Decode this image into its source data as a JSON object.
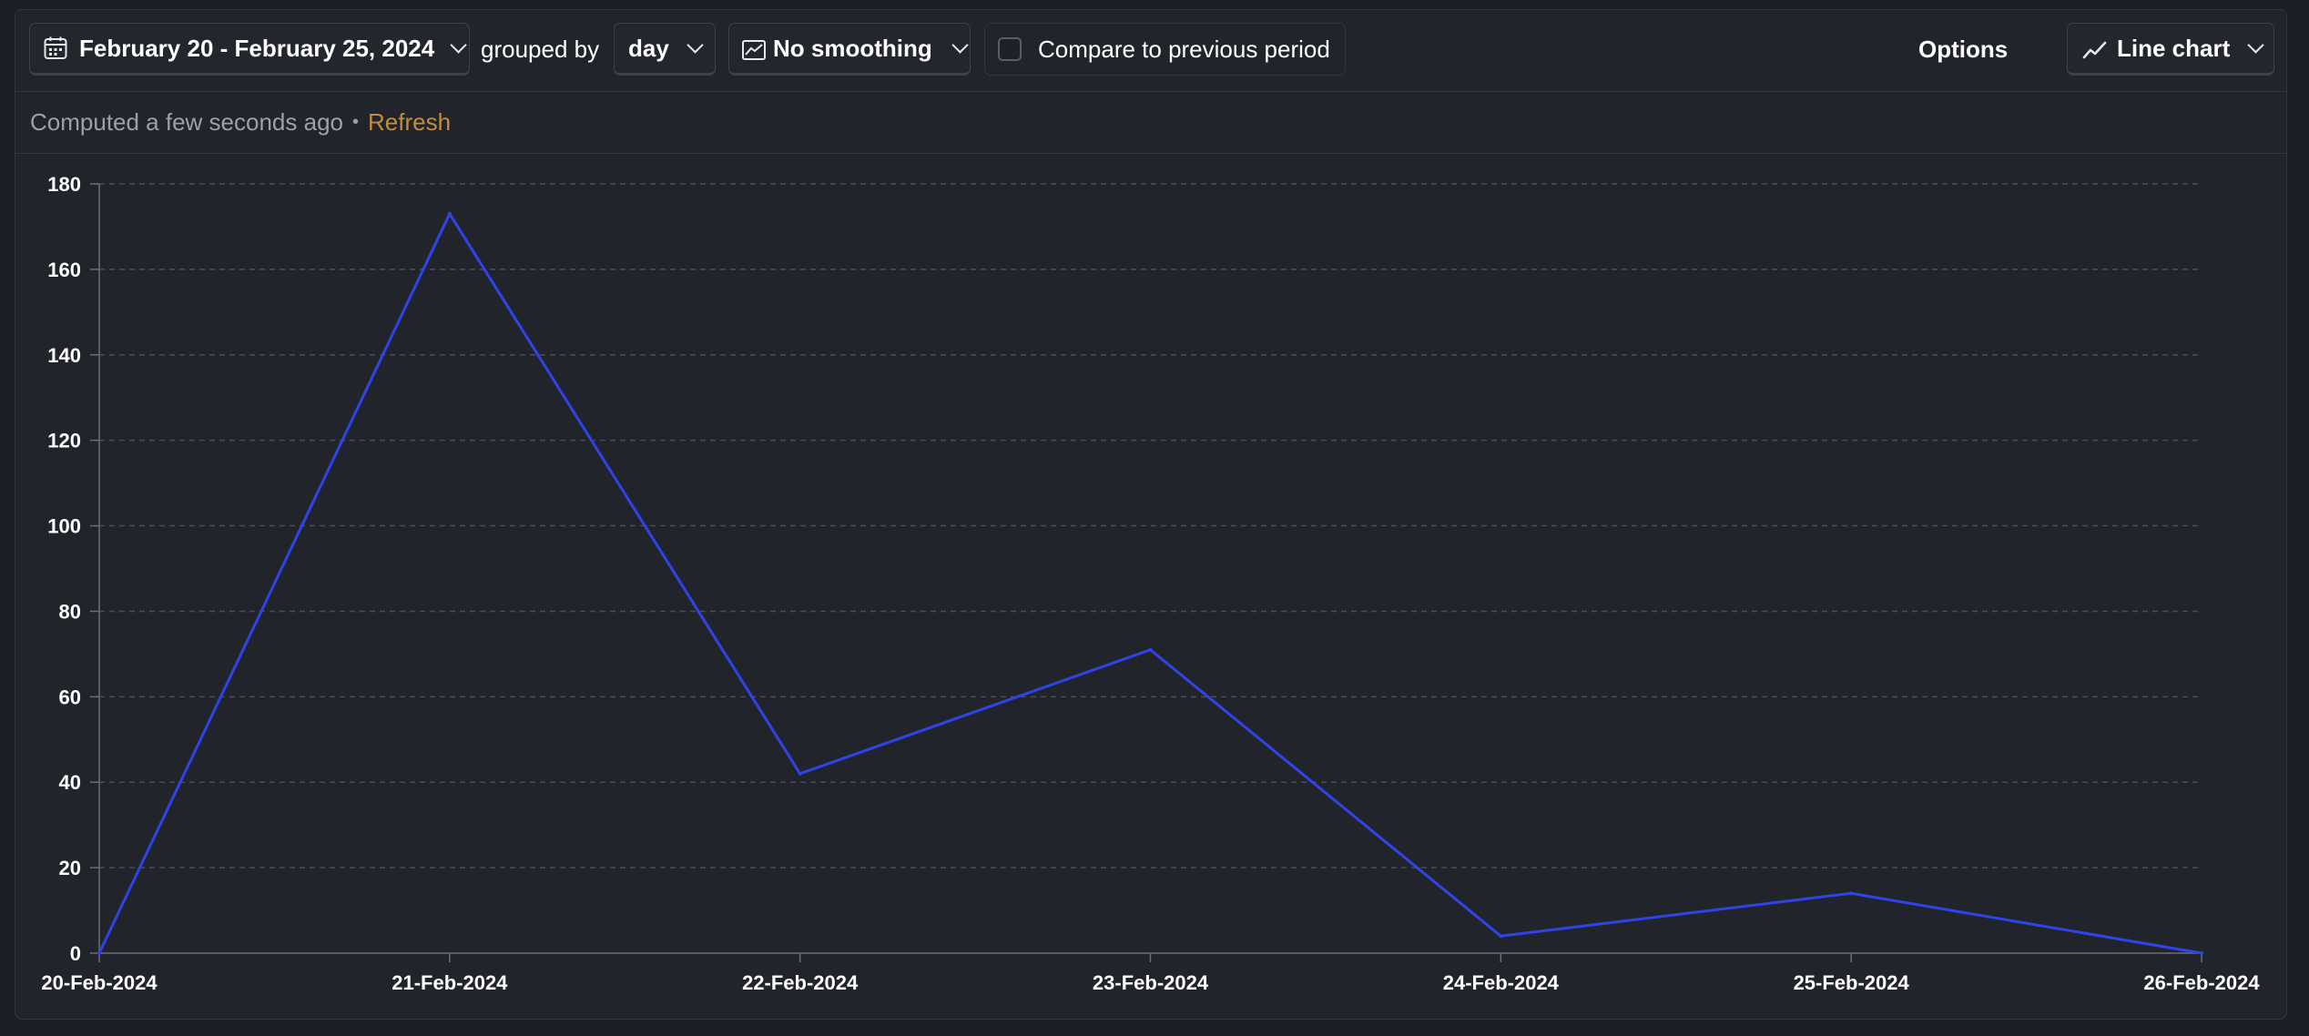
{
  "toolbar": {
    "date_range": "February 20 - February 25, 2024",
    "grouped_by_label": "grouped by",
    "interval": "day",
    "smoothing": "No smoothing",
    "compare_label": "Compare to previous period",
    "compare_checked": false,
    "options_label": "Options",
    "chart_type_label": "Line chart"
  },
  "status": {
    "computed_text": "Computed a few seconds ago",
    "separator": "•",
    "refresh_label": "Refresh"
  },
  "icons": {
    "date_range": "calendar-icon",
    "smoothing": "line-chart-small-icon",
    "chart_type": "trend-line-icon",
    "dropdowns": "chevron-down-icon"
  },
  "colors": {
    "series": "#2e44e8",
    "refresh_link": "#c28d3c"
  },
  "chart_data": {
    "type": "line",
    "x": [
      "20-Feb-2024",
      "21-Feb-2024",
      "22-Feb-2024",
      "23-Feb-2024",
      "24-Feb-2024",
      "25-Feb-2024",
      "26-Feb-2024"
    ],
    "series": [
      {
        "values": [
          0,
          173,
          42,
          71,
          4,
          14,
          0
        ]
      }
    ],
    "yticks": [
      0,
      20,
      40,
      60,
      80,
      100,
      120,
      140,
      160,
      180
    ],
    "ylim": [
      0,
      180
    ],
    "grid": "horizontal dashed",
    "legend": "none"
  }
}
